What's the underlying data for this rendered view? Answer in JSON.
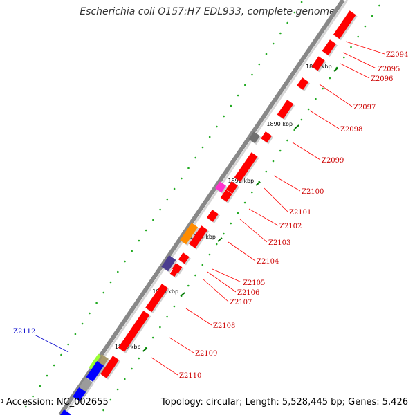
{
  "title": "Escherichia coli O157:H7 EDL933, complete genome",
  "footer": {
    "accession": "Accession: NC_002655",
    "summary": "Topology: circular; Length: 5,528,445 bp; Genes: 5,426",
    "edge_tick": "1"
  },
  "colors": {
    "gene_red": "#ff0000",
    "gene_red_dark": "#c40000",
    "label_red": "#cc0000",
    "label_blue": "#0000cc",
    "backbone": "#888888",
    "minor_tick": "#22aa22"
  },
  "kbp_labels": [
    "1888 kbp",
    "1890 kbp",
    "1892 kbp",
    "1894 kbp",
    "1896 kbp",
    "1898 kbp"
  ],
  "gene_labels": [
    {
      "text": "Z2094",
      "color": "#cc0000"
    },
    {
      "text": "Z2095",
      "color": "#cc0000"
    },
    {
      "text": "Z2096",
      "color": "#cc0000"
    },
    {
      "text": "Z2097",
      "color": "#cc0000"
    },
    {
      "text": "Z2098",
      "color": "#cc0000"
    },
    {
      "text": "Z2099",
      "color": "#cc0000"
    },
    {
      "text": "Z2100",
      "color": "#cc0000"
    },
    {
      "text": "Z2101",
      "color": "#cc0000"
    },
    {
      "text": "Z2102",
      "color": "#cc0000"
    },
    {
      "text": "Z2103",
      "color": "#cc0000"
    },
    {
      "text": "Z2104",
      "color": "#cc0000"
    },
    {
      "text": "Z2105",
      "color": "#cc0000"
    },
    {
      "text": "Z2106",
      "color": "#cc0000"
    },
    {
      "text": "Z2107",
      "color": "#cc0000"
    },
    {
      "text": "Z2108",
      "color": "#cc0000"
    },
    {
      "text": "Z2109",
      "color": "#cc0000"
    },
    {
      "text": "Z2110",
      "color": "#cc0000"
    },
    {
      "text": "Z2112",
      "color": "#0000cc"
    }
  ],
  "feature_colors": [
    "#ff0000",
    "#707070",
    "#ff33cc",
    "#ff8c00",
    "#4b3d8f",
    "#9b9b9b",
    "#a89a6a",
    "#99ff33",
    "#0000ff",
    "#cccccc"
  ]
}
